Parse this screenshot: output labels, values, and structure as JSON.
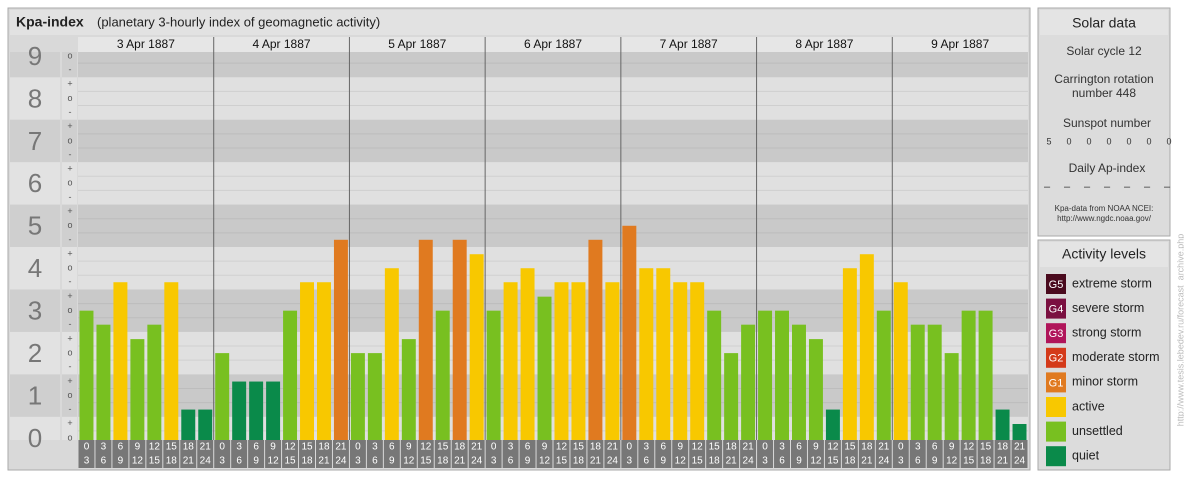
{
  "chart_data": {
    "type": "bar",
    "title": "Kpa-index",
    "subtitle": "(planetary 3-hourly index of geomagnetic activity)",
    "ylim": [
      0,
      9
    ],
    "yticks": [
      0,
      1,
      2,
      3,
      4,
      5,
      6,
      7,
      8,
      9
    ],
    "sublabels": {
      "minus": "-",
      "zero": "o",
      "plus": "+"
    },
    "hour_labels": [
      [
        "0",
        "3"
      ],
      [
        "3",
        "6"
      ],
      [
        "6",
        "9"
      ],
      [
        "9",
        "12"
      ],
      [
        "12",
        "15"
      ],
      [
        "15",
        "18"
      ],
      [
        "18",
        "21"
      ],
      [
        "21",
        "24"
      ]
    ],
    "days": [
      {
        "date": "3 Apr 1887",
        "values": [
          3,
          2.67,
          3.67,
          2.33,
          2.67,
          3.67,
          0.67,
          0.67
        ],
        "colors": [
          "#78c020",
          "#78c020",
          "#f8c800",
          "#78c020",
          "#78c020",
          "#f8c800",
          "#0a8a4a",
          "#0a8a4a"
        ]
      },
      {
        "date": "4 Apr 1887",
        "values": [
          2,
          1.33,
          1.33,
          1.33,
          3,
          3.67,
          3.67,
          4.67
        ],
        "colors": [
          "#78c020",
          "#0a8a4a",
          "#0a8a4a",
          "#0a8a4a",
          "#78c020",
          "#f8c800",
          "#f8c800",
          "#e07a20"
        ]
      },
      {
        "date": "5 Apr 1887",
        "values": [
          2,
          2,
          4,
          2.33,
          4.67,
          3,
          4.67,
          4.33
        ],
        "colors": [
          "#78c020",
          "#78c020",
          "#f8c800",
          "#78c020",
          "#e07a20",
          "#78c020",
          "#e07a20",
          "#f8c800"
        ]
      },
      {
        "date": "6 Apr 1887",
        "values": [
          3,
          3.67,
          4,
          3.33,
          3.67,
          3.67,
          4.67,
          3.67
        ],
        "colors": [
          "#78c020",
          "#f8c800",
          "#f8c800",
          "#78c020",
          "#f8c800",
          "#f8c800",
          "#e07a20",
          "#f8c800"
        ]
      },
      {
        "date": "7 Apr 1887",
        "values": [
          5,
          4,
          4,
          3.67,
          3.67,
          3,
          2,
          2.67
        ],
        "colors": [
          "#e07a20",
          "#f8c800",
          "#f8c800",
          "#f8c800",
          "#f8c800",
          "#78c020",
          "#78c020",
          "#78c020"
        ]
      },
      {
        "date": "8 Apr 1887",
        "values": [
          3,
          3,
          2.67,
          2.33,
          0.67,
          4,
          4.33,
          3
        ],
        "colors": [
          "#78c020",
          "#78c020",
          "#78c020",
          "#78c020",
          "#0a8a4a",
          "#f8c800",
          "#f8c800",
          "#78c020"
        ]
      },
      {
        "date": "9 Apr 1887",
        "values": [
          3.67,
          2.67,
          2.67,
          2,
          3,
          3,
          0.67,
          0.33
        ],
        "colors": [
          "#f8c800",
          "#78c020",
          "#78c020",
          "#78c020",
          "#78c020",
          "#78c020",
          "#0a8a4a",
          "#0a8a4a"
        ]
      }
    ]
  },
  "solar": {
    "title": "Solar data",
    "cycle": "Solar cycle 12",
    "rotation": "Carrington rotation number 448",
    "sunspot_title": "Sunspot number",
    "sunspots": [
      5,
      0,
      0,
      0,
      0,
      0,
      0
    ],
    "ap_title": "Daily Ap-index",
    "ap": [
      "–",
      "–",
      "–",
      "–",
      "–",
      "–",
      "–"
    ],
    "source": "Kpa-data from NOAA NCEI:",
    "source_url": "http://www.ngdc.noaa.gov/"
  },
  "levels": {
    "title": "Activity levels",
    "items": [
      {
        "badge": "G5",
        "label": "extreme storm",
        "color": "#4a0a1e"
      },
      {
        "badge": "G4",
        "label": "severe storm",
        "color": "#7a1040"
      },
      {
        "badge": "G3",
        "label": "strong storm",
        "color": "#b0155a"
      },
      {
        "badge": "G2",
        "label": "moderate storm",
        "color": "#d43a1a"
      },
      {
        "badge": "G1",
        "label": "minor storm",
        "color": "#e07a20"
      },
      {
        "label": "active",
        "color": "#f8c800"
      },
      {
        "label": "unsettled",
        "color": "#78c020"
      },
      {
        "label": "quiet",
        "color": "#0a8a4a"
      }
    ]
  },
  "watermark": "http://www.tesis.lebedev.ru/forecast_archive.php"
}
